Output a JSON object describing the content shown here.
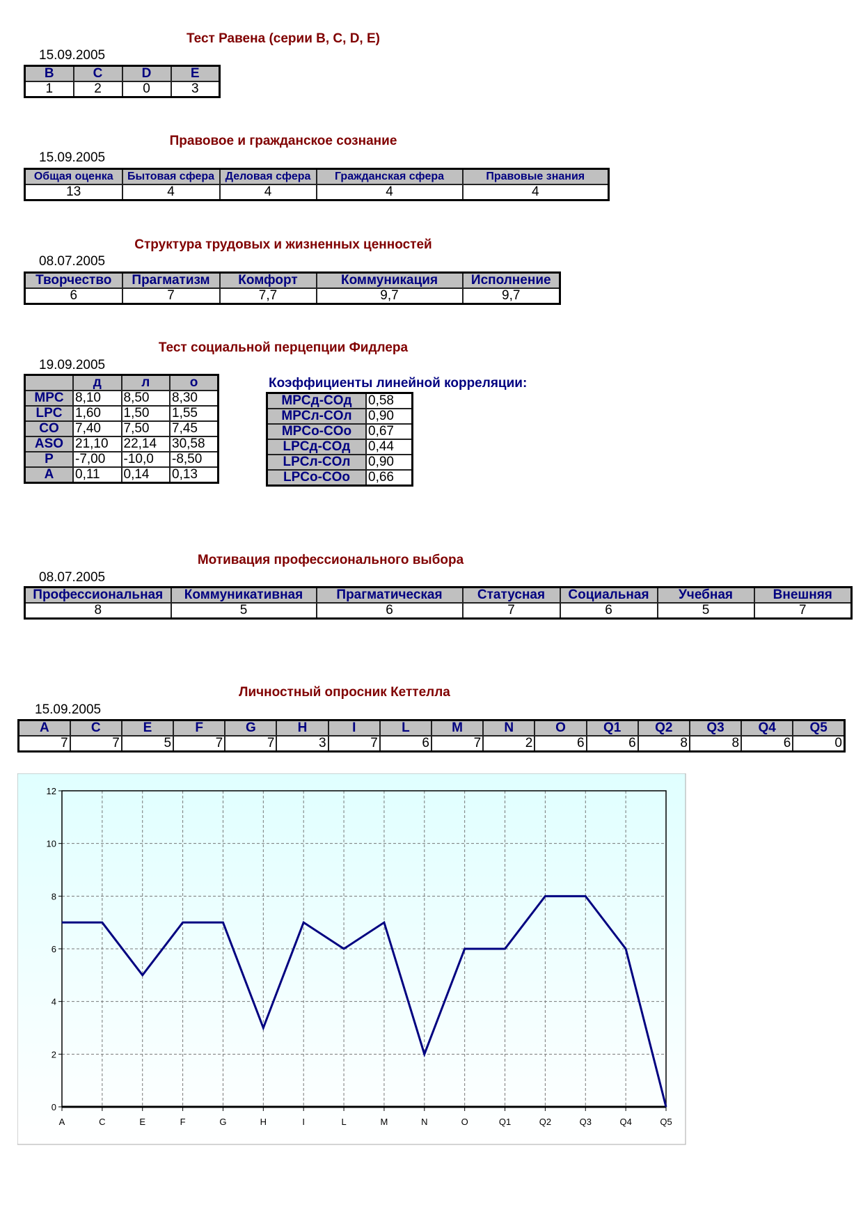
{
  "raven": {
    "title": "Тест Равена (серии B, C, D, E)",
    "date": "15.09.2005",
    "headers": [
      "B",
      "C",
      "D",
      "E"
    ],
    "values": [
      "1",
      "2",
      "0",
      "3"
    ]
  },
  "legal": {
    "title": "Правовое и гражданское сознание",
    "date": "15.09.2005",
    "headers": [
      "Общая оценка",
      "Бытовая сфера",
      "Деловая сфера",
      "Гражданская сфера",
      "Правовые знания"
    ],
    "values": [
      "13",
      "4",
      "4",
      "4",
      "4"
    ]
  },
  "values_struct": {
    "title": "Структура трудовых и жизненных ценностей",
    "date": "08.07.2005",
    "headers": [
      "Творчество",
      "Прагматизм",
      "Комфорт",
      "Коммуникация",
      "Исполнение"
    ],
    "values": [
      "6",
      "7",
      "7,7",
      "9,7",
      "9,7"
    ]
  },
  "fiedler": {
    "title": "Тест социальной перцепции Фидлера",
    "date": "19.09.2005",
    "headers": [
      "",
      "д",
      "л",
      "о"
    ],
    "rows": [
      [
        "MPC",
        "8,10",
        "8,50",
        "8,30"
      ],
      [
        "LPC",
        "1,60",
        "1,50",
        "1,55"
      ],
      [
        "CO",
        "7,40",
        "7,50",
        "7,45"
      ],
      [
        "ASO",
        "21,10",
        "22,14",
        "30,58"
      ],
      [
        "P",
        "-7,00",
        "-10,0",
        "-8,50"
      ],
      [
        "A",
        "0,11",
        "0,14",
        "0,13"
      ]
    ],
    "corr_title": "Коэффициенты линейной корреляции:",
    "corr": [
      [
        "MPCд-COд",
        "0,58"
      ],
      [
        "MPCл-COл",
        "0,90"
      ],
      [
        "MPCо-COо",
        "0,67"
      ],
      [
        "LPCд-COд",
        "0,44"
      ],
      [
        "LPCл-COл",
        "0,90"
      ],
      [
        "LPCо-COо",
        "0,66"
      ]
    ]
  },
  "motivation": {
    "title": "Мотивация профессионального выбора",
    "date": "08.07.2005",
    "headers": [
      "Профессиональная",
      "Коммуникативная",
      "Прагматическая",
      "Статусная",
      "Социальная",
      "Учебная",
      "Внешняя"
    ],
    "values": [
      "8",
      "5",
      "6",
      "7",
      "6",
      "5",
      "7"
    ]
  },
  "cattell": {
    "title": "Личностный опросник Кеттелла",
    "date": "15.09.2005",
    "headers": [
      "A",
      "C",
      "E",
      "F",
      "G",
      "H",
      "I",
      "L",
      "M",
      "N",
      "O",
      "Q1",
      "Q2",
      "Q3",
      "Q4",
      "Q5"
    ],
    "values": [
      "7",
      "7",
      "5",
      "7",
      "7",
      "3",
      "7",
      "6",
      "7",
      "2",
      "6",
      "6",
      "8",
      "8",
      "6",
      "0"
    ]
  },
  "chart_data": {
    "type": "line",
    "categories": [
      "A",
      "C",
      "E",
      "F",
      "G",
      "H",
      "I",
      "L",
      "M",
      "N",
      "O",
      "Q1",
      "Q2",
      "Q3",
      "Q4",
      "Q5"
    ],
    "values": [
      7,
      7,
      5,
      7,
      7,
      3,
      7,
      6,
      7,
      2,
      6,
      6,
      8,
      8,
      6,
      0
    ],
    "ylim": [
      0,
      12
    ],
    "yticks": [
      "0",
      "2",
      "4",
      "6",
      "8",
      "10",
      "12"
    ],
    "grid": true,
    "line_color": "#000080",
    "background": "#e0ffff"
  }
}
